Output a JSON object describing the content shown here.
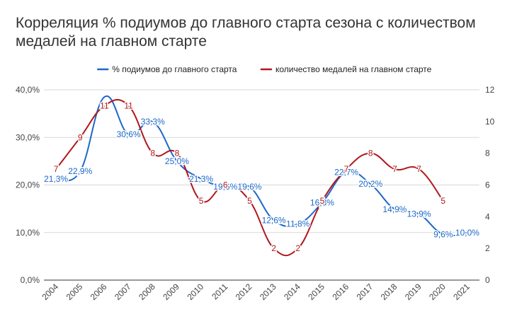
{
  "chart_data": {
    "type": "line",
    "title": "Корреляция % подиумов до главного старта сезона с количеством медалей на главном старте",
    "categories": [
      "2004",
      "2005",
      "2006",
      "2007",
      "2008",
      "2009",
      "2010",
      "2011",
      "2012",
      "2013",
      "2014",
      "2015",
      "2016",
      "2017",
      "2018",
      "2019",
      "2020",
      "2021"
    ],
    "series": [
      {
        "name": "% подиумов до главного старта",
        "axis": "left",
        "color": "#1c68c8",
        "values": [
          21.3,
          22.9,
          38.5,
          30.6,
          33.3,
          25.0,
          21.3,
          19.6,
          19.6,
          12.6,
          11.8,
          16.3,
          22.7,
          20.2,
          14.9,
          13.9,
          9.6,
          10.0
        ],
        "labels": [
          "21,3%",
          "22,9%",
          "",
          "30,6%",
          "33,3%",
          "25,0%",
          "21,3%",
          "19,6%",
          "19,6%",
          "12,6%",
          "11,8%",
          "16,3%",
          "22,7%",
          "20,2%",
          "14,9%",
          "13,9%",
          "9,6%",
          "10,0%"
        ]
      },
      {
        "name": "количество медалей на главном старте",
        "axis": "right",
        "color": "#b0161b",
        "values": [
          7,
          9,
          11,
          11,
          8,
          8,
          5,
          6,
          5,
          2,
          2,
          5,
          7,
          8,
          7,
          7,
          5,
          null
        ],
        "labels": [
          "7",
          "9",
          "11",
          "11",
          "8",
          "8",
          "5",
          "6",
          "5",
          "2",
          "2",
          "5",
          "7",
          "8",
          "7",
          "7",
          "5",
          ""
        ]
      }
    ],
    "y_left": {
      "min": 0,
      "max": 40,
      "ticks": [
        "0,0%",
        "10,0%",
        "20,0%",
        "30,0%",
        "40,0%"
      ]
    },
    "y_right": {
      "min": 0,
      "max": 12,
      "ticks": [
        "0",
        "2",
        "4",
        "6",
        "8",
        "10",
        "12"
      ]
    },
    "legend_position": "top",
    "grid": true
  },
  "colors": {
    "grid": "#d9d9d9",
    "axis_text": "#444444",
    "title": "#333333"
  }
}
